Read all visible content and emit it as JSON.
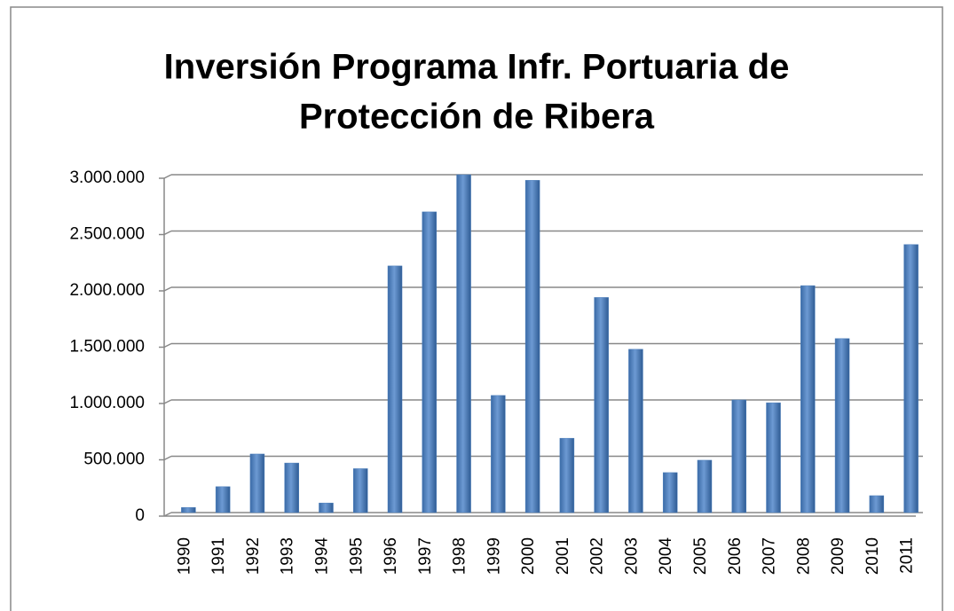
{
  "chart_data": {
    "type": "bar",
    "title": [
      "Inversión Programa Infr. Portuaria de",
      "Protección de Ribera"
    ],
    "categories": [
      "1990",
      "1991",
      "1992",
      "1993",
      "1994",
      "1995",
      "1996",
      "1997",
      "1998",
      "1999",
      "2000",
      "2001",
      "2002",
      "2003",
      "2004",
      "2005",
      "2006",
      "2007",
      "2008",
      "2009",
      "2010",
      "2011"
    ],
    "values": [
      45000,
      230000,
      520000,
      440000,
      85000,
      390000,
      2190000,
      2670000,
      3000000,
      1040000,
      2950000,
      660000,
      1910000,
      1450000,
      355000,
      465000,
      1000000,
      975000,
      2015000,
      1545000,
      150000,
      2380000
    ],
    "color": "#4f81bd",
    "ylim": [
      0,
      3000000
    ],
    "yticks": [
      0,
      {
        "value": 500000,
        "label": "500.000"
      },
      {
        "value": 1000000,
        "label": "1.000.000"
      },
      {
        "value": 1500000,
        "label": "1.500.000"
      },
      {
        "value": 2000000,
        "label": "2.000.000"
      },
      {
        "value": 2500000,
        "label": "2.500.000"
      },
      {
        "value": 3000000,
        "label": "3.000.000"
      }
    ],
    "grid": true
  }
}
